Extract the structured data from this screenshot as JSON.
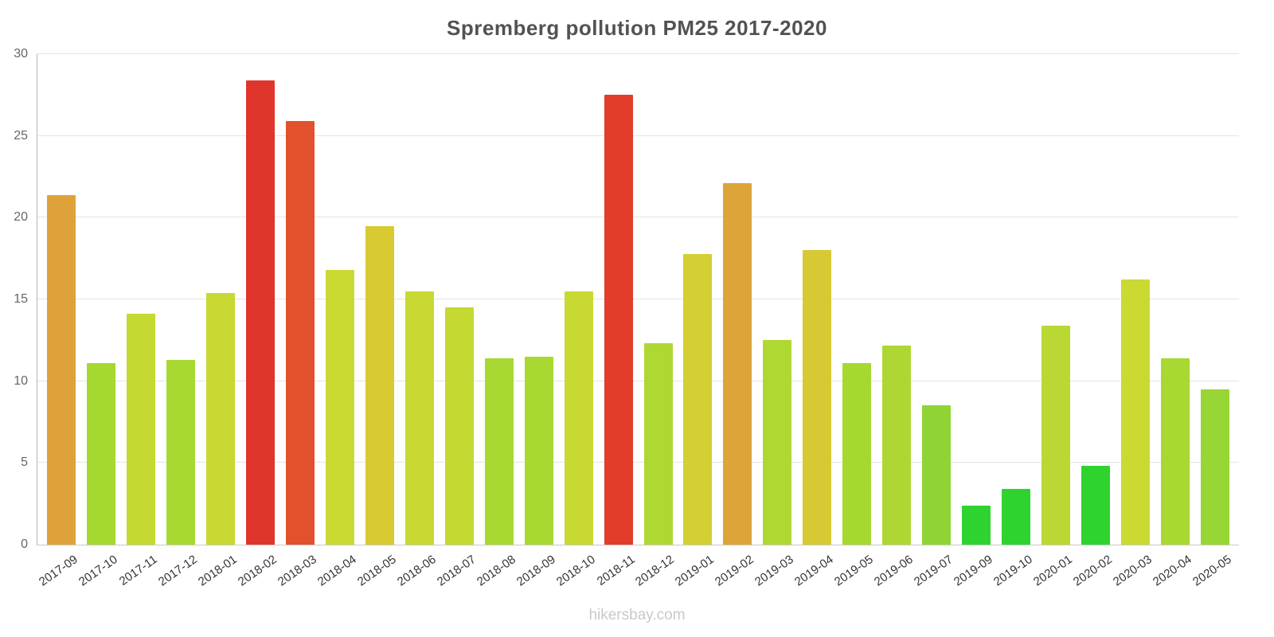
{
  "chart_data": {
    "type": "bar",
    "title": "Spremberg pollution PM25 2017-2020",
    "xlabel": "",
    "ylabel": "",
    "ylim": [
      0,
      30
    ],
    "yticks": [
      0,
      5,
      10,
      15,
      20,
      25,
      30
    ],
    "grid": true,
    "legend": false,
    "source": "hikersbay.com",
    "categories": [
      "2017-09",
      "2017-10",
      "2017-11",
      "2017-12",
      "2018-01",
      "2018-02",
      "2018-03",
      "2018-04",
      "2018-05",
      "2018-06",
      "2018-07",
      "2018-08",
      "2018-09",
      "2018-10",
      "2018-11",
      "2018-12",
      "2019-01",
      "2019-02",
      "2019-03",
      "2019-04",
      "2019-05",
      "2019-06",
      "2019-07",
      "2019-09",
      "2019-10",
      "2020-01",
      "2020-02",
      "2020-03",
      "2020-04",
      "2020-05"
    ],
    "values": [
      21.4,
      11.1,
      14.1,
      11.3,
      15.4,
      28.4,
      25.9,
      16.8,
      19.5,
      15.5,
      14.5,
      11.4,
      11.5,
      15.5,
      27.5,
      12.3,
      17.8,
      22.1,
      12.5,
      18.0,
      11.1,
      12.2,
      8.5,
      2.4,
      3.4,
      13.4,
      4.8,
      16.2,
      11.4,
      9.5
    ],
    "colors": [
      "#dfa23a",
      "#a5d831",
      "#c4d932",
      "#a8d832",
      "#c7d932",
      "#e0352b",
      "#e2512d",
      "#cbd933",
      "#d8cb32",
      "#c7d932",
      "#c4d932",
      "#a8d832",
      "#a8d832",
      "#c7d932",
      "#e23c2b",
      "#afd833",
      "#d4cf33",
      "#dda43a",
      "#afd833",
      "#d7c933",
      "#a5d831",
      "#aed733",
      "#8fd434",
      "#2fd32f",
      "#2fd32f",
      "#b9d833",
      "#2fd32f",
      "#cbd933",
      "#a8d832",
      "#97d634"
    ]
  }
}
